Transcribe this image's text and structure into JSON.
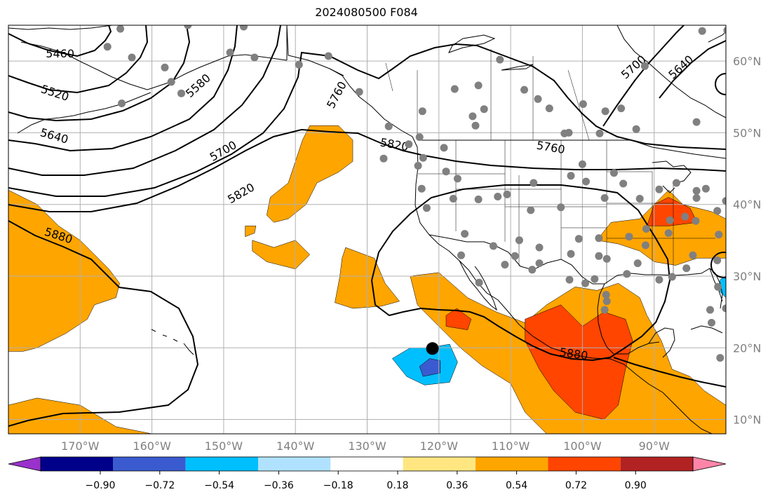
{
  "title": "2024080500 F084",
  "map": {
    "projection": "PlateCarree",
    "lon_range": [
      -180,
      -80
    ],
    "lat_range": [
      8,
      65
    ],
    "grid": true,
    "lon_labels": [
      "170°W",
      "160°W",
      "150°W",
      "140°W",
      "130°W",
      "120°W",
      "110°W",
      "100°W",
      "90°W"
    ],
    "lon_values": [
      -170,
      -160,
      -150,
      -140,
      -130,
      -120,
      -110,
      -100,
      -90
    ],
    "lat_labels": [
      "60°N",
      "50°N",
      "40°N",
      "30°N",
      "20°N",
      "10°N"
    ],
    "lat_values": [
      60,
      50,
      40,
      30,
      20,
      10
    ],
    "colors": {
      "coast": "#000000",
      "grid": "#b0b0b0",
      "tick_label": "#808080",
      "station_dot": "#808080",
      "contour": "#000000"
    }
  },
  "contours": {
    "variable": "geopotential height",
    "labels": [
      {
        "text": "5460",
        "lon": -172.8,
        "lat": 61.1,
        "rot": 0
      },
      {
        "text": "5520",
        "lon": -173.5,
        "lat": 55.6,
        "rot": 18
      },
      {
        "text": "5580",
        "lon": -153.6,
        "lat": 56.6,
        "rot": -42
      },
      {
        "text": "5640",
        "lon": -173.6,
        "lat": 49.6,
        "rot": 16
      },
      {
        "text": "5700",
        "lon": -150.1,
        "lat": 47.5,
        "rot": -30
      },
      {
        "text": "5760",
        "lon": -134.3,
        "lat": 55.3,
        "rot": -62
      },
      {
        "text": "5820",
        "lon": -147.6,
        "lat": 41.6,
        "rot": -30
      },
      {
        "text": "5820",
        "lon": -126.2,
        "lat": 48.4,
        "rot": 10
      },
      {
        "text": "5760",
        "lon": -104.4,
        "lat": 48.0,
        "rot": 10
      },
      {
        "text": "5880",
        "lon": -173.0,
        "lat": 35.7,
        "rot": 18
      },
      {
        "text": "5880",
        "lon": -101.2,
        "lat": 19.2,
        "rot": 8
      },
      {
        "text": "5700",
        "lon": -92.9,
        "lat": 59.2,
        "rot": -42
      },
      {
        "text": "5640",
        "lon": -86.3,
        "lat": 59.2,
        "rot": -42
      }
    ]
  },
  "anomaly_regions": [
    {
      "level": "0.36",
      "points": [
        [
          -180,
          42
        ],
        [
          -176,
          40
        ],
        [
          -173,
          37
        ],
        [
          -170,
          35
        ],
        [
          -168,
          33
        ],
        [
          -166,
          31
        ],
        [
          -164.5,
          29
        ],
        [
          -165,
          27
        ],
        [
          -168,
          26
        ],
        [
          -169,
          24
        ],
        [
          -172,
          22
        ],
        [
          -176,
          20
        ],
        [
          -178,
          19.5
        ],
        [
          -180,
          19.5
        ]
      ]
    },
    {
      "level": "0.36",
      "points": [
        [
          -138,
          51
        ],
        [
          -134,
          51
        ],
        [
          -132,
          49
        ],
        [
          -132,
          46
        ],
        [
          -134,
          44.5
        ],
        [
          -137,
          43
        ],
        [
          -138.5,
          40
        ],
        [
          -141,
          38
        ],
        [
          -143,
          37.5
        ],
        [
          -144,
          38.5
        ],
        [
          -143.5,
          41
        ],
        [
          -141,
          43
        ],
        [
          -140,
          46
        ],
        [
          -139,
          49
        ]
      ]
    },
    {
      "level": "0.36",
      "points": [
        [
          -146,
          35
        ],
        [
          -143,
          34
        ],
        [
          -140,
          35
        ],
        [
          -138,
          33
        ],
        [
          -140,
          31
        ],
        [
          -144,
          32
        ],
        [
          -146,
          33.5
        ]
      ]
    },
    {
      "level": "0.36",
      "points": [
        [
          -147,
          37
        ],
        [
          -145.5,
          37
        ],
        [
          -145.7,
          36
        ],
        [
          -147,
          35.5
        ]
      ]
    },
    {
      "level": "0.36",
      "points": [
        [
          -133,
          34
        ],
        [
          -129,
          32.5
        ],
        [
          -127.5,
          29
        ],
        [
          -125.5,
          26.5
        ],
        [
          -128,
          25.8
        ],
        [
          -132,
          25.5
        ],
        [
          -134.5,
          26.3
        ],
        [
          -133.8,
          30
        ],
        [
          -133.5,
          32.5
        ]
      ]
    },
    {
      "level": "0.36",
      "points": [
        [
          -124,
          30
        ],
        [
          -120,
          30.5
        ],
        [
          -116,
          27
        ],
        [
          -112,
          25
        ],
        [
          -108,
          23.5
        ],
        [
          -105,
          26
        ],
        [
          -101,
          28.5
        ],
        [
          -98,
          28
        ],
        [
          -95,
          29
        ],
        [
          -92,
          27
        ],
        [
          -91,
          24.5
        ],
        [
          -89,
          21
        ],
        [
          -87.5,
          17
        ],
        [
          -85,
          16
        ],
        [
          -83,
          14
        ],
        [
          -80,
          12
        ],
        [
          -80,
          8
        ],
        [
          -105,
          8
        ],
        [
          -108,
          11
        ],
        [
          -110,
          15
        ],
        [
          -114,
          17.5
        ],
        [
          -117,
          20
        ],
        [
          -120,
          23
        ],
        [
          -123,
          26
        ]
      ]
    },
    {
      "level": "0.36",
      "points": [
        [
          -90,
          40
        ],
        [
          -88,
          42
        ],
        [
          -86,
          40
        ],
        [
          -82,
          39
        ],
        [
          -80,
          38
        ],
        [
          -80,
          32.5
        ],
        [
          -84,
          32.5
        ],
        [
          -87,
          31.5
        ],
        [
          -90,
          32
        ],
        [
          -92,
          33.5
        ],
        [
          -95,
          34.5
        ],
        [
          -98,
          35
        ],
        [
          -96,
          37.5
        ],
        [
          -92,
          38
        ]
      ]
    },
    {
      "level": "0.36",
      "points": [
        [
          -180,
          12
        ],
        [
          -176,
          13
        ],
        [
          -170,
          12
        ],
        [
          -165,
          9
        ],
        [
          -160,
          8
        ],
        [
          -180,
          8
        ]
      ]
    },
    {
      "level": "0.54",
      "points": [
        [
          -119,
          23
        ],
        [
          -116,
          22.5
        ],
        [
          -115.5,
          24
        ],
        [
          -117.5,
          25.5
        ],
        [
          -119,
          24.5
        ]
      ]
    },
    {
      "level": "0.54",
      "points": [
        [
          -108,
          24
        ],
        [
          -103,
          26
        ],
        [
          -100,
          23
        ],
        [
          -97,
          25
        ],
        [
          -94,
          24
        ],
        [
          -93,
          21
        ],
        [
          -94,
          17
        ],
        [
          -95,
          12
        ],
        [
          -97,
          10
        ],
        [
          -101,
          11
        ],
        [
          -104,
          14
        ],
        [
          -106,
          17
        ],
        [
          -108,
          21
        ]
      ]
    },
    {
      "level": "0.54",
      "points": [
        [
          -90,
          40
        ],
        [
          -88,
          41
        ],
        [
          -85,
          39.5
        ],
        [
          -84,
          37.5
        ],
        [
          -88,
          37
        ],
        [
          -91,
          37
        ]
      ]
    },
    {
      "level": "-0.36",
      "points": [
        [
          -121.5,
          20
        ],
        [
          -118.5,
          20.5
        ],
        [
          -117.4,
          18
        ],
        [
          -118.5,
          15.2
        ],
        [
          -122,
          14.8
        ],
        [
          -124.5,
          16
        ],
        [
          -126.5,
          18.5
        ],
        [
          -124,
          20
        ]
      ]
    },
    {
      "level": "-0.54",
      "points": [
        [
          -121.3,
          18.5
        ],
        [
          -119.8,
          18.2
        ],
        [
          -119.8,
          16.5
        ],
        [
          -122.2,
          16
        ],
        [
          -122.7,
          17.4
        ]
      ]
    },
    {
      "level": "-0.36",
      "points": [
        [
          -80.8,
          29.5
        ],
        [
          -80,
          30
        ],
        [
          -80,
          27
        ],
        [
          -80.8,
          27.8
        ]
      ]
    }
  ],
  "storm_marker": {
    "lon": -120.9,
    "lat": 19.9
  },
  "stations": [
    [
      -164.4,
      64.5
    ],
    [
      -166.2,
      62.0
    ],
    [
      -162.8,
      60.5
    ],
    [
      -158.2,
      59.1
    ],
    [
      -157.3,
      57.1
    ],
    [
      -164.2,
      54.1
    ],
    [
      -155.9,
      55.5
    ],
    [
      -149.1,
      61.2
    ],
    [
      -147.2,
      64.8
    ],
    [
      -145.7,
      60.5
    ],
    [
      -155.0,
      65.0
    ],
    [
      -139.5,
      59.5
    ],
    [
      -135.4,
      60.7
    ],
    [
      -131.1,
      55.7
    ],
    [
      -127.0,
      50.9
    ],
    [
      -127.7,
      46.4
    ],
    [
      -124.2,
      48.4
    ],
    [
      -122.3,
      53.0
    ],
    [
      -117.8,
      56.1
    ],
    [
      -113.7,
      53.3
    ],
    [
      -114.5,
      56.6
    ],
    [
      -111.5,
      60.2
    ],
    [
      -108.1,
      56.0
    ],
    [
      -106.2,
      54.7
    ],
    [
      -104.6,
      53.4
    ],
    [
      -102.5,
      49.9
    ],
    [
      -101.9,
      50.0
    ],
    [
      -99.9,
      54.0
    ],
    [
      -96.8,
      53.0
    ],
    [
      -97.6,
      49.9
    ],
    [
      -94.6,
      53.4
    ],
    [
      -92.5,
      50.5
    ],
    [
      -84.1,
      51.5
    ],
    [
      -83.3,
      64.2
    ],
    [
      -79.8,
      64.3
    ],
    [
      -91.3,
      59.3
    ],
    [
      -115.3,
      52.3
    ],
    [
      -114.9,
      51.0
    ],
    [
      -122.7,
      49.4
    ],
    [
      -122.9,
      45.4
    ],
    [
      -122.2,
      46.5
    ],
    [
      -122.4,
      42.2
    ],
    [
      -119.0,
      44.6
    ],
    [
      -119.3,
      47.9
    ],
    [
      -121.7,
      39.5
    ],
    [
      -118.0,
      40.8
    ],
    [
      -117.4,
      43.6
    ],
    [
      -114.5,
      40.7
    ],
    [
      -110.5,
      41.4
    ],
    [
      -111.8,
      41.1
    ],
    [
      -106.8,
      43.0
    ],
    [
      -107.2,
      39.2
    ],
    [
      -103.0,
      39.6
    ],
    [
      -101.6,
      44.0
    ],
    [
      -99.5,
      43.2
    ],
    [
      -100.0,
      45.6
    ],
    [
      -95.6,
      44.4
    ],
    [
      -96.9,
      40.9
    ],
    [
      -94.3,
      42.9
    ],
    [
      -92.0,
      40.8
    ],
    [
      -89.3,
      42.1
    ],
    [
      -86.9,
      43.0
    ],
    [
      -82.8,
      42.2
    ],
    [
      -84.1,
      41.9
    ],
    [
      -81.2,
      39.1
    ],
    [
      -80.0,
      40.5
    ],
    [
      -85.7,
      38.3
    ],
    [
      -84.2,
      37.7
    ],
    [
      -88.0,
      36.0
    ],
    [
      -91.1,
      36.6
    ],
    [
      -93.5,
      35.5
    ],
    [
      -97.7,
      35.3
    ],
    [
      -97.7,
      32.8
    ],
    [
      -100.5,
      35.2
    ],
    [
      -101.6,
      33.1
    ],
    [
      -106.0,
      34.0
    ],
    [
      -106.0,
      31.8
    ],
    [
      -108.8,
      35.0
    ],
    [
      -109.4,
      32.8
    ],
    [
      -112.4,
      34.2
    ],
    [
      -110.8,
      31.6
    ],
    [
      -116.4,
      35.9
    ],
    [
      -116.9,
      32.9
    ],
    [
      -114.4,
      29.1
    ],
    [
      -107.0,
      30.9
    ],
    [
      -101.8,
      29.5
    ],
    [
      -98.3,
      29.6
    ],
    [
      -96.6,
      32.4
    ],
    [
      -93.8,
      30.3
    ],
    [
      -92.3,
      31.8
    ],
    [
      -91.2,
      34.3
    ],
    [
      -89.3,
      29.5
    ],
    [
      -87.5,
      29.9
    ],
    [
      -85.5,
      31.1
    ],
    [
      -84.6,
      32.9
    ],
    [
      -81.2,
      32.2
    ],
    [
      -81.0,
      35.8
    ],
    [
      -81.1,
      28.5
    ],
    [
      -80.0,
      25.5
    ],
    [
      -82.2,
      25.3
    ],
    [
      -82.0,
      23.5
    ],
    [
      -80.8,
      18.6
    ],
    [
      -96.7,
      27.4
    ],
    [
      -96.9,
      25.3
    ],
    [
      -96.6,
      26.5
    ],
    [
      -99.6,
      29.0
    ],
    [
      -84.1,
      40.9
    ],
    [
      -87.8,
      37.8
    ]
  ],
  "colorbar": {
    "levels": [
      "-0.90",
      "-0.72",
      "-0.54",
      "-0.36",
      "-0.18",
      "0.18",
      "0.36",
      "0.54",
      "0.72",
      "0.90"
    ],
    "tick_labels": [
      "−0.90",
      "−0.72",
      "−0.54",
      "−0.36",
      "−0.18",
      "0.18",
      "0.36",
      "0.54",
      "0.72",
      "0.90"
    ],
    "colors": [
      "#9932cc",
      "#00008b",
      "#3a5bcf",
      "#00bfff",
      "#b0e2ff",
      "#ffffff",
      "#ffe680",
      "#ffa500",
      "#ff4500",
      "#b22222",
      "#ff85a8"
    ],
    "level_colors": {
      "-0.54": "#3a5bcf",
      "-0.36": "#00bfff",
      "0.36": "#ffa500",
      "0.54": "#ff4500"
    },
    "extend": "both"
  }
}
